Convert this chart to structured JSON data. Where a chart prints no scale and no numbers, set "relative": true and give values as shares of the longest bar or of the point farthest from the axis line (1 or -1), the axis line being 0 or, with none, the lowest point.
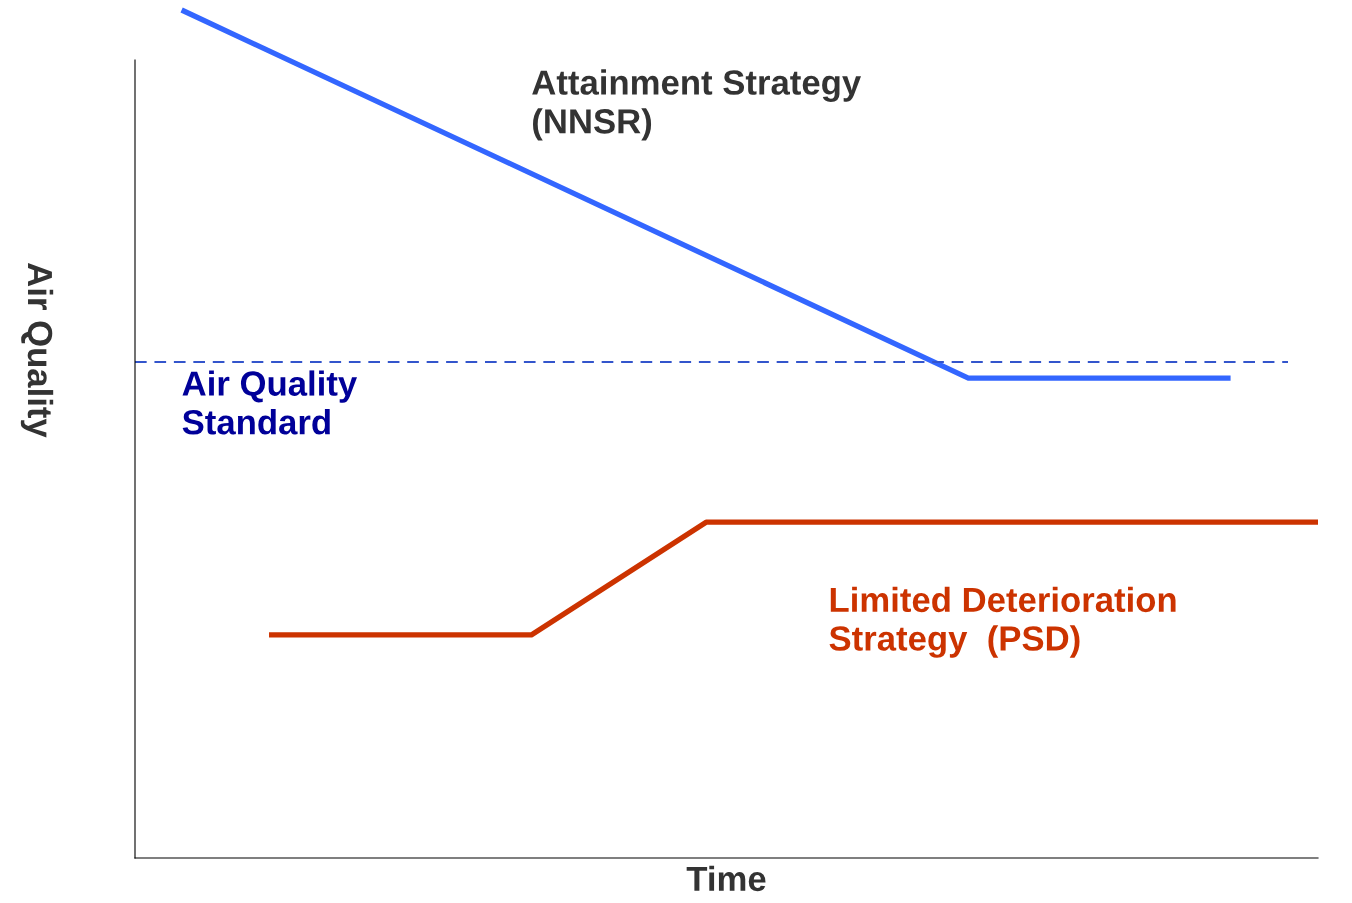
{
  "chart_data": {
    "type": "line",
    "relative": true,
    "xlabel": "Time",
    "ylabel": "Air Quality",
    "categories": [
      null,
      null,
      null,
      null,
      null,
      null,
      null,
      null,
      null,
      null,
      null,
      null,
      null,
      null
    ],
    "series": [
      {
        "name": "Attainment Strategy (NNSR)",
        "color": "#3366ff",
        "values": [
          1,
          null,
          null,
          null,
          null,
          null,
          null,
          null,
          null,
          0.566,
          null,
          null,
          0.566,
          null
        ]
      },
      {
        "name": "Limited Deterioration Strategy  (PSD)",
        "color": "#cc3300",
        "values": [
          null,
          0.263,
          null,
          null,
          0.263,
          null,
          0.396,
          null,
          null,
          null,
          null,
          null,
          null,
          0.396
        ]
      }
    ],
    "ref_lines": [
      {
        "axis": "y",
        "value": 0.585,
        "label": "Air Quality Standard",
        "color": "#3355cc",
        "line_style": "dashed"
      }
    ],
    "legend": false,
    "grid": false
  }
}
